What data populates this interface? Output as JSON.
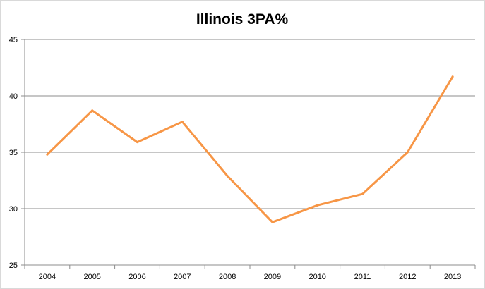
{
  "chart_data": {
    "type": "line",
    "title": "Illinois 3PA%",
    "xlabel": "",
    "ylabel": "",
    "categories": [
      "2004",
      "2005",
      "2006",
      "2007",
      "2008",
      "2009",
      "2010",
      "2011",
      "2012",
      "2013"
    ],
    "series": [
      {
        "values": [
          34.8,
          38.7,
          35.9,
          37.7,
          32.9,
          28.8,
          30.3,
          31.3,
          35.0,
          41.7
        ],
        "color": "#f79646"
      }
    ],
    "ylim": [
      25,
      45
    ],
    "yticks": [
      25,
      30,
      35,
      40,
      45
    ],
    "grid": true,
    "legend": "none"
  }
}
